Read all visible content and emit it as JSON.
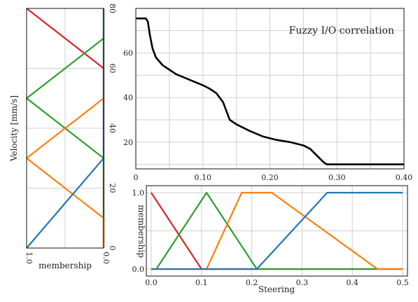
{
  "chart_data": [
    {
      "id": "left",
      "type": "line",
      "ylabel": "Velocity [mm/s]",
      "xlabel": "membership",
      "x_ticks": [
        "1.0",
        "0.0"
      ],
      "y_ticks": [
        "0",
        "20",
        "40",
        "60",
        "80"
      ],
      "xlim": [
        1,
        0
      ],
      "ylim": [
        0,
        80
      ],
      "series": [
        {
          "color": "#d62728",
          "points": [
            [
              1,
              80
            ],
            [
              0,
              60
            ],
            [
              0,
              0
            ]
          ]
        },
        {
          "color": "#2ca02c",
          "points": [
            [
              0,
              0
            ],
            [
              0,
              30
            ],
            [
              1,
              50
            ],
            [
              0,
              70
            ],
            [
              0,
              80
            ]
          ]
        },
        {
          "color": "#ff7f0e",
          "points": [
            [
              0,
              0
            ],
            [
              0,
              10
            ],
            [
              1,
              30
            ],
            [
              0,
              50
            ],
            [
              0,
              80
            ]
          ]
        },
        {
          "color": "#1f77b4",
          "points": [
            [
              1,
              0
            ],
            [
              0,
              30
            ],
            [
              0,
              80
            ]
          ]
        }
      ]
    },
    {
      "id": "main",
      "type": "line",
      "title": "Fuzzy I/O correlation",
      "x_ticks": [
        "0",
        "0.10",
        "0.20",
        "0.30",
        "0.40"
      ],
      "y_ticks": [
        "20",
        "40",
        "60"
      ],
      "xlim": [
        0,
        0.4
      ],
      "ylim": [
        8,
        80
      ],
      "series": [
        {
          "color": "#000000",
          "points": [
            [
              0,
              75.5
            ],
            [
              0.015,
              75.5
            ],
            [
              0.018,
              74
            ],
            [
              0.021,
              68
            ],
            [
              0.025,
              62
            ],
            [
              0.03,
              58
            ],
            [
              0.04,
              54.5
            ],
            [
              0.05,
              52.5
            ],
            [
              0.06,
              50.5
            ],
            [
              0.08,
              48
            ],
            [
              0.1,
              45.5
            ],
            [
              0.11,
              44
            ],
            [
              0.12,
              42
            ],
            [
              0.13,
              38
            ],
            [
              0.135,
              34
            ],
            [
              0.14,
              30
            ],
            [
              0.15,
              28
            ],
            [
              0.17,
              25
            ],
            [
              0.19,
              22.5
            ],
            [
              0.21,
              21
            ],
            [
              0.23,
              20
            ],
            [
              0.25,
              18.5
            ],
            [
              0.26,
              17
            ],
            [
              0.27,
              14
            ],
            [
              0.28,
              11
            ],
            [
              0.285,
              10
            ],
            [
              0.4,
              10
            ]
          ]
        }
      ]
    },
    {
      "id": "bottom",
      "type": "line",
      "xlabel": "Steering",
      "ylabel": "membership",
      "x_ticks": [
        "0.0",
        "0.1",
        "0.2",
        "0.3",
        "0.4",
        "0.5"
      ],
      "y_ticks": [
        "0.0",
        "1.0"
      ],
      "xlim": [
        0,
        0.5
      ],
      "ylim": [
        0,
        1
      ],
      "series": [
        {
          "color": "#d62728",
          "points": [
            [
              0,
              1
            ],
            [
              0.1,
              0
            ],
            [
              0.5,
              0
            ]
          ]
        },
        {
          "color": "#2ca02c",
          "points": [
            [
              0,
              0
            ],
            [
              0.01,
              0
            ],
            [
              0.11,
              1
            ],
            [
              0.21,
              0
            ],
            [
              0.5,
              0
            ]
          ]
        },
        {
          "color": "#ff7f0e",
          "points": [
            [
              0,
              0
            ],
            [
              0.11,
              0
            ],
            [
              0.18,
              1
            ],
            [
              0.24,
              1
            ],
            [
              0.45,
              0
            ],
            [
              0.5,
              0
            ]
          ]
        },
        {
          "color": "#1f77b4",
          "points": [
            [
              0,
              0
            ],
            [
              0.21,
              0
            ],
            [
              0.35,
              1
            ],
            [
              0.5,
              1
            ]
          ]
        }
      ]
    }
  ]
}
